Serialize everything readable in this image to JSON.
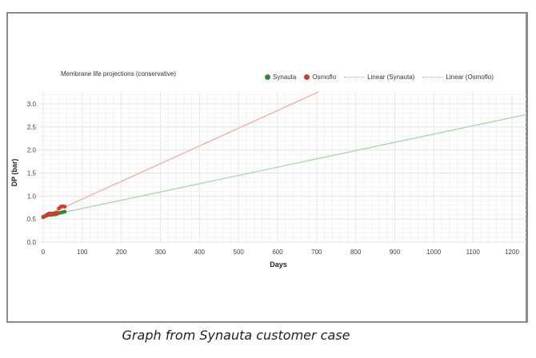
{
  "chart_data": {
    "type": "scatter",
    "title": "Membrane life projections (conservative)",
    "xlabel": "Days",
    "ylabel": "DP (bar)",
    "xlim": [
      0,
      1240
    ],
    "ylim": [
      0,
      3.0
    ],
    "x_ticks": [
      "0",
      "100",
      "200",
      "300",
      "400",
      "500",
      "600",
      "700",
      "800",
      "900",
      "1000",
      "1100",
      "1200"
    ],
    "y_ticks": [
      "0.0",
      "0.5",
      "1.0",
      "1.5",
      "2.0",
      "2.5",
      "3.0"
    ],
    "grid": true,
    "legend_position": "top-right",
    "legend": [
      "Synauta",
      "Osmoflo",
      "Linear (Synauta)",
      "Linear (Osmoflo)"
    ],
    "series": [
      {
        "name": "Synauta",
        "kind": "points",
        "color": "#2e8b3a",
        "x": [
          0,
          5,
          10,
          15,
          20,
          25,
          30,
          35,
          40,
          45,
          50,
          55
        ],
        "y": [
          0.54,
          0.56,
          0.58,
          0.59,
          0.59,
          0.6,
          0.6,
          0.61,
          0.63,
          0.64,
          0.65,
          0.66
        ]
      },
      {
        "name": "Osmoflo",
        "kind": "points",
        "color": "#d33a2c",
        "x": [
          0,
          5,
          10,
          15,
          20,
          25,
          30,
          35,
          40,
          45,
          50,
          55
        ],
        "y": [
          0.55,
          0.57,
          0.6,
          0.62,
          0.62,
          0.62,
          0.63,
          0.64,
          0.73,
          0.77,
          0.78,
          0.77
        ]
      },
      {
        "name": "Linear (Synauta)",
        "kind": "trendline",
        "color": "#a8d5b0",
        "x": [
          0,
          1240
        ],
        "y": [
          0.55,
          2.77
        ]
      },
      {
        "name": "Linear (Osmoflo)",
        "kind": "trendline",
        "color": "#f2aaa6",
        "x": [
          0,
          705
        ],
        "y": [
          0.55,
          3.26
        ]
      }
    ]
  },
  "caption": "Graph from Synauta customer case"
}
